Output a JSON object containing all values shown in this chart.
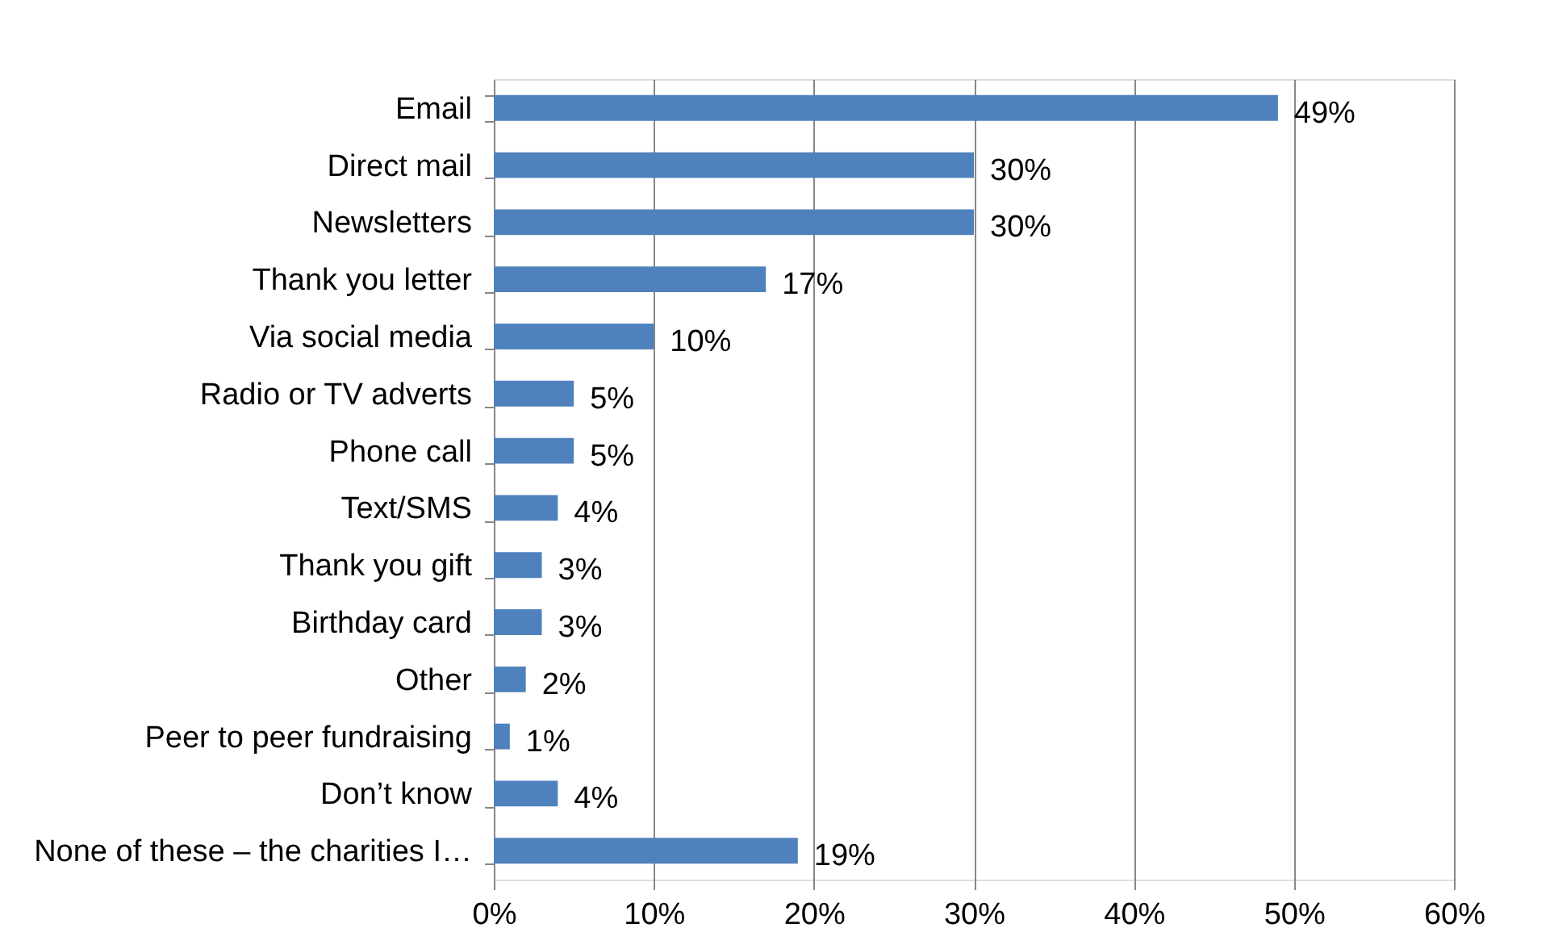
{
  "chart_data": {
    "type": "bar",
    "orientation": "horizontal",
    "categories": [
      "Email",
      "Direct mail",
      "Newsletters",
      "Thank you letter",
      "Via social media",
      "Radio or TV adverts",
      "Phone call",
      "Text/SMS",
      "Thank you gift",
      "Birthday card",
      "Other",
      "Peer to peer fundraising",
      "Don’t know",
      "None of these – the charities I…"
    ],
    "values": [
      49,
      30,
      30,
      17,
      10,
      5,
      5,
      4,
      3,
      3,
      2,
      1,
      4,
      19
    ],
    "value_labels": [
      "49%",
      "30%",
      "30%",
      "17%",
      "10%",
      "5%",
      "5%",
      "4%",
      "3%",
      "3%",
      "2%",
      "1%",
      "4%",
      "19%"
    ],
    "color": "#4f81bd",
    "xlim": [
      0,
      60
    ],
    "xticks": [
      {
        "value": 0,
        "label": "0%"
      },
      {
        "value": 10,
        "label": "10%"
      },
      {
        "value": 20,
        "label": "20%"
      },
      {
        "value": 30,
        "label": "30%"
      },
      {
        "value": 40,
        "label": "40%"
      },
      {
        "value": 50,
        "label": "50%"
      },
      {
        "value": 60,
        "label": "60%"
      }
    ],
    "grid": "x"
  }
}
